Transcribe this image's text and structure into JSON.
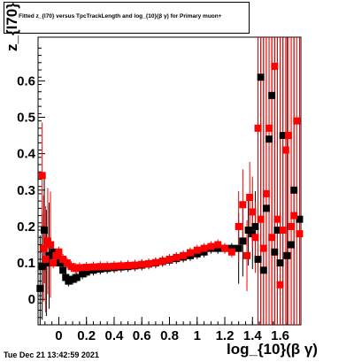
{
  "title_text": "Fitted  z_{I70}  versus TpcTrackLength and log_{10}(β γ) for Primary muon+",
  "timestamp": "Tue Dec 21 13:42:59 2021",
  "chart_data": {
    "type": "scatter",
    "title": "Fitted  z_{I70}  versus TpcTrackLength and log_{10}(β γ) for Primary muon+",
    "xlabel": "log_{10}(β γ)",
    "ylabel": "z_{I70}",
    "xlim": [
      -0.15,
      1.75
    ],
    "ylim": [
      -0.07,
      0.72
    ],
    "x_ticks": [
      "0",
      "0.2",
      "0.4",
      "0.6",
      "0.8",
      "1",
      "1.2",
      "1.4",
      "1.6"
    ],
    "y_ticks": [
      "0",
      "0.1",
      "0.2",
      "0.3",
      "0.4",
      "0.5",
      "0.6"
    ],
    "grid": false,
    "legend": "none",
    "series": [
      {
        "color": "#000000",
        "points": [
          [
            -0.135,
            0.03
          ],
          [
            -0.12,
            0.09
          ],
          [
            -0.105,
            0.19
          ],
          [
            -0.09,
            0.1
          ],
          [
            -0.07,
            0.12
          ],
          [
            -0.04,
            0.13
          ],
          [
            -0.01,
            0.12
          ],
          [
            0.01,
            0.1
          ],
          [
            0.03,
            0.08
          ],
          [
            0.05,
            0.06
          ],
          [
            0.07,
            0.05
          ],
          [
            0.1,
            0.055
          ],
          [
            0.13,
            0.06
          ],
          [
            0.17,
            0.07
          ],
          [
            0.2,
            0.075
          ],
          [
            0.25,
            0.08
          ],
          [
            0.3,
            0.083
          ],
          [
            0.35,
            0.085
          ],
          [
            0.4,
            0.087
          ],
          [
            0.45,
            0.089
          ],
          [
            0.5,
            0.09
          ],
          [
            0.55,
            0.092
          ],
          [
            0.6,
            0.094
          ],
          [
            0.65,
            0.097
          ],
          [
            0.7,
            0.1
          ],
          [
            0.75,
            0.104
          ],
          [
            0.8,
            0.108
          ],
          [
            0.85,
            0.112
          ],
          [
            0.9,
            0.116
          ],
          [
            0.95,
            0.12
          ],
          [
            1.0,
            0.125
          ],
          [
            1.05,
            0.13
          ],
          [
            1.1,
            0.14
          ],
          [
            1.15,
            0.14
          ],
          [
            1.2,
            0.14
          ],
          [
            1.25,
            0.14
          ],
          [
            1.3,
            0.14
          ],
          [
            1.33,
            0.16
          ],
          [
            1.37,
            0.19
          ],
          [
            1.4,
            0.18
          ],
          [
            1.42,
            0.2
          ],
          [
            1.44,
            0.11
          ],
          [
            1.46,
            0.61
          ],
          [
            1.48,
            0.08
          ],
          [
            1.5,
            0.25
          ],
          [
            1.52,
            0.44
          ],
          [
            1.54,
            0.56
          ],
          [
            1.56,
            0.13
          ],
          [
            1.58,
            0.19
          ],
          [
            1.6,
            0.1
          ],
          [
            1.62,
            0.45
          ],
          [
            1.65,
            0.12
          ],
          [
            1.68,
            0.15
          ],
          [
            1.7,
            0.3
          ],
          [
            1.74,
            0.22
          ]
        ]
      },
      {
        "color": "#ff0000",
        "points": [
          [
            -0.12,
            0.34
          ],
          [
            -0.11,
            0.14
          ],
          [
            -0.095,
            0.11
          ],
          [
            -0.08,
            0.16
          ],
          [
            -0.06,
            0.15
          ],
          [
            -0.04,
            0.1
          ],
          [
            -0.02,
            0.12
          ],
          [
            0.0,
            0.13
          ],
          [
            0.03,
            0.11
          ],
          [
            0.06,
            0.1
          ],
          [
            0.09,
            0.09
          ],
          [
            0.12,
            0.085
          ],
          [
            0.15,
            0.087
          ],
          [
            0.2,
            0.088
          ],
          [
            0.25,
            0.089
          ],
          [
            0.3,
            0.09
          ],
          [
            0.35,
            0.09
          ],
          [
            0.4,
            0.091
          ],
          [
            0.45,
            0.092
          ],
          [
            0.5,
            0.093
          ],
          [
            0.55,
            0.094
          ],
          [
            0.6,
            0.096
          ],
          [
            0.65,
            0.098
          ],
          [
            0.7,
            0.101
          ],
          [
            0.75,
            0.105
          ],
          [
            0.8,
            0.11
          ],
          [
            0.85,
            0.115
          ],
          [
            0.9,
            0.12
          ],
          [
            0.95,
            0.128
          ],
          [
            1.0,
            0.135
          ],
          [
            1.05,
            0.14
          ],
          [
            1.1,
            0.145
          ],
          [
            1.15,
            0.15
          ],
          [
            1.2,
            0.14
          ],
          [
            1.25,
            0.13
          ],
          [
            1.3,
            0.2
          ],
          [
            1.33,
            0.26
          ],
          [
            1.36,
            0.12
          ],
          [
            1.38,
            0.28
          ],
          [
            1.4,
            0.24
          ],
          [
            1.42,
            0.17
          ],
          [
            1.44,
            0.47
          ],
          [
            1.46,
            0.22
          ],
          [
            1.48,
            0.14
          ],
          [
            1.5,
            0.29
          ],
          [
            1.52,
            0.47
          ],
          [
            1.54,
            0.17
          ],
          [
            1.56,
            0.64
          ],
          [
            1.58,
            0.22
          ],
          [
            1.6,
            0.04
          ],
          [
            1.62,
            0.19
          ],
          [
            1.64,
            0.41
          ],
          [
            1.66,
            0.45
          ],
          [
            1.68,
            0.2
          ],
          [
            1.7,
            0.23
          ],
          [
            1.72,
            0.49
          ],
          [
            1.74,
            0.18
          ]
        ]
      }
    ]
  }
}
